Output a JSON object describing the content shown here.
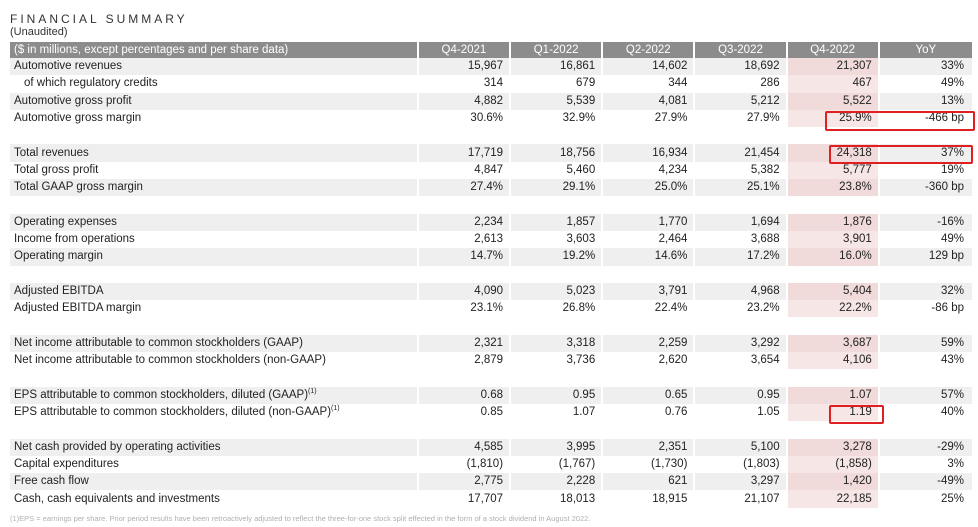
{
  "header": {
    "title": "FINANCIAL SUMMARY",
    "subtitle": "(Unaudited)"
  },
  "table": {
    "columns": [
      "($ in millions, except percentages and per share data)",
      "Q4-2021",
      "Q1-2022",
      "Q2-2022",
      "Q3-2022",
      "Q4-2022",
      "YoY"
    ],
    "rows": [
      {
        "label": "Automotive revenues",
        "values": [
          "15,967",
          "16,861",
          "14,602",
          "18,692",
          "21,307",
          "33%"
        ]
      },
      {
        "label": "of which regulatory credits",
        "values": [
          "314",
          "679",
          "344",
          "286",
          "467",
          "49%"
        ],
        "indent": true
      },
      {
        "label": "Automotive gross profit",
        "values": [
          "4,882",
          "5,539",
          "4,081",
          "5,212",
          "5,522",
          "13%"
        ]
      },
      {
        "label": "Automotive gross margin",
        "values": [
          "30.6%",
          "32.9%",
          "27.9%",
          "27.9%",
          "25.9%",
          "-466 bp"
        ]
      },
      {
        "gap": true
      },
      {
        "label": "Total revenues",
        "values": [
          "17,719",
          "18,756",
          "16,934",
          "21,454",
          "24,318",
          "37%"
        ]
      },
      {
        "label": "Total gross profit",
        "values": [
          "4,847",
          "5,460",
          "4,234",
          "5,382",
          "5,777",
          "19%"
        ]
      },
      {
        "label": "Total GAAP gross margin",
        "values": [
          "27.4%",
          "29.1%",
          "25.0%",
          "25.1%",
          "23.8%",
          "-360 bp"
        ]
      },
      {
        "gap": true
      },
      {
        "label": "Operating expenses",
        "values": [
          "2,234",
          "1,857",
          "1,770",
          "1,694",
          "1,876",
          "-16%"
        ]
      },
      {
        "label": "Income from operations",
        "values": [
          "2,613",
          "3,603",
          "2,464",
          "3,688",
          "3,901",
          "49%"
        ]
      },
      {
        "label": "Operating margin",
        "values": [
          "14.7%",
          "19.2%",
          "14.6%",
          "17.2%",
          "16.0%",
          "129 bp"
        ]
      },
      {
        "gap": true
      },
      {
        "label": "Adjusted EBITDA",
        "values": [
          "4,090",
          "5,023",
          "3,791",
          "4,968",
          "5,404",
          "32%"
        ]
      },
      {
        "label": "Adjusted EBITDA margin",
        "values": [
          "23.1%",
          "26.8%",
          "22.4%",
          "23.2%",
          "22.2%",
          "-86 bp"
        ]
      },
      {
        "gap": true
      },
      {
        "label": "Net income attributable to common stockholders (GAAP)",
        "values": [
          "2,321",
          "3,318",
          "2,259",
          "3,292",
          "3,687",
          "59%"
        ]
      },
      {
        "label": "Net income attributable to common stockholders (non-GAAP)",
        "values": [
          "2,879",
          "3,736",
          "2,620",
          "3,654",
          "4,106",
          "43%"
        ]
      },
      {
        "gap": true
      },
      {
        "label": "EPS attributable to common stockholders, diluted (GAAP)",
        "sup": "(1)",
        "values": [
          "0.68",
          "0.95",
          "0.65",
          "0.95",
          "1.07",
          "57%"
        ]
      },
      {
        "label": "EPS attributable to common stockholders, diluted (non-GAAP)",
        "sup": "(1)",
        "values": [
          "0.85",
          "1.07",
          "0.76",
          "1.05",
          "1.19",
          "40%"
        ]
      },
      {
        "gap": true
      },
      {
        "label": "Net cash provided by operating activities",
        "values": [
          "4,585",
          "3,995",
          "2,351",
          "5,100",
          "3,278",
          "-29%"
        ]
      },
      {
        "label": "Capital expenditures",
        "values": [
          "(1,810)",
          "(1,767)",
          "(1,730)",
          "(1,803)",
          "(1,858)",
          "3%"
        ]
      },
      {
        "label": "Free cash flow",
        "values": [
          "2,775",
          "2,228",
          "621",
          "3,297",
          "1,420",
          "-49%"
        ]
      },
      {
        "label": "Cash, cash equivalents and investments",
        "values": [
          "17,707",
          "18,013",
          "18,915",
          "21,107",
          "22,185",
          "25%"
        ]
      }
    ]
  },
  "footnote": "(1)EPS = earnings per share. Prior period results have been retroactively adjusted to reflect the three-for-one stock split effected in the form of a stock dividend in August 2022.",
  "colors": {
    "header_bg": "#8c8c8c",
    "row_shade": "#efefef",
    "q4_highlight": "#f0dada",
    "annotation_box": "#e02020"
  }
}
